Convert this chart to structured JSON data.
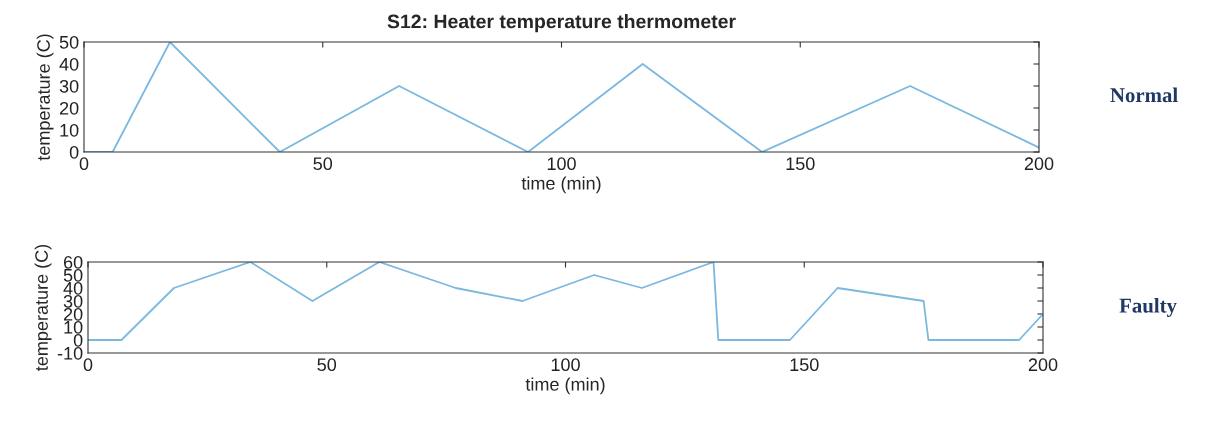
{
  "chart_data": [
    {
      "type": "line",
      "title": "S12: Heater temperature thermometer",
      "xlabel": "time (min)",
      "ylabel": "temperature (C)",
      "annotations": [
        "Normal"
      ],
      "series": [
        {
          "color": "#7ab8e0",
          "x": [
            0,
            6,
            18,
            41,
            66,
            93,
            117,
            142,
            173,
            200
          ],
          "values": [
            0,
            0,
            50,
            0,
            30,
            0,
            40,
            0,
            30,
            2
          ]
        }
      ],
      "xlim": [
        0,
        200
      ],
      "xticks": [
        0,
        50,
        100,
        150,
        200
      ],
      "ylim": [
        0,
        50
      ],
      "yticks": [
        0,
        10,
        20,
        30,
        40,
        50
      ],
      "grid": false,
      "legend": false
    },
    {
      "type": "line",
      "xlabel": "time (min)",
      "ylabel": "temperature (C)",
      "annotations": [
        "Faulty"
      ],
      "series": [
        {
          "color": "#7ab8e0",
          "x": [
            0,
            7,
            18,
            34,
            47,
            61,
            77,
            91,
            106,
            116,
            131,
            132,
            147,
            157,
            175,
            176,
            195,
            200
          ],
          "values": [
            0,
            0,
            40,
            60,
            30,
            60,
            40,
            30,
            50,
            40,
            60,
            0,
            0,
            40,
            30,
            0,
            0,
            20
          ]
        }
      ],
      "xlim": [
        0,
        200
      ],
      "xticks": [
        0,
        50,
        100,
        150,
        200
      ],
      "ylim": [
        -10,
        60
      ],
      "yticks": [
        -10,
        0,
        10,
        20,
        30,
        40,
        50,
        60
      ],
      "grid": false,
      "legend": false
    }
  ]
}
